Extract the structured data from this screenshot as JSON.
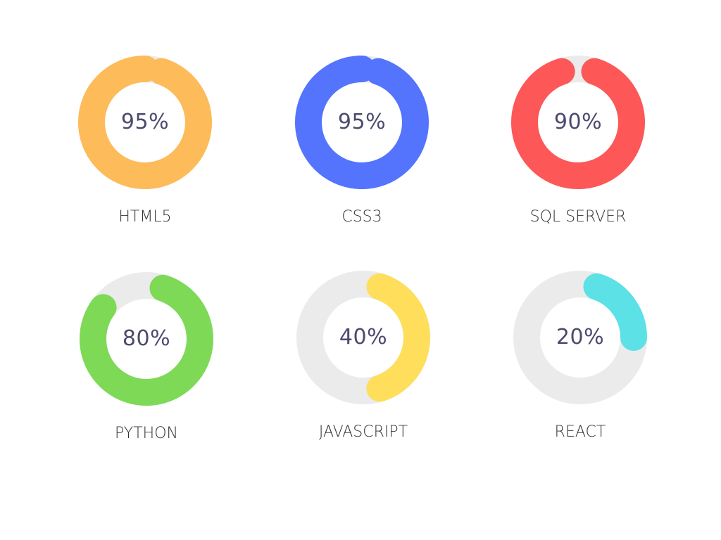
{
  "chart_data": {
    "type": "pie",
    "track_color": "#ebebeb",
    "label_color": "#4b4a6e",
    "items": [
      {
        "name": "HTML5",
        "value": 95,
        "label": "95%",
        "color": "#fdbb5a"
      },
      {
        "name": "CSS3",
        "value": 95,
        "label": "95%",
        "color": "#5474fd"
      },
      {
        "name": "SQL SERVER",
        "value": 90,
        "label": "90%",
        "color": "#fd5757"
      },
      {
        "name": "PYTHON",
        "value": 80,
        "label": "80%",
        "color": "#7ed957"
      },
      {
        "name": "JAVASCRIPT",
        "value": 40,
        "label": "40%",
        "color": "#fede5a"
      },
      {
        "name": "REACT",
        "value": 20,
        "label": "20%",
        "color": "#5ce1e6"
      }
    ]
  }
}
